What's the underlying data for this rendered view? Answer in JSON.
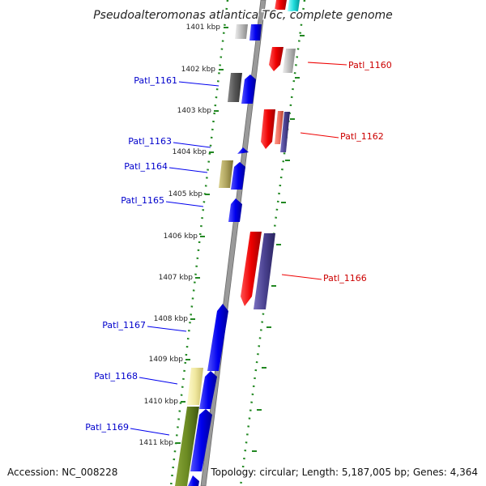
{
  "title": "Pseudoalteromonas atlantica T6c, complete genome",
  "accession": "Accession: NC_008228",
  "topology": "Topology: circular; Length: 5,187,005 bp; Genes: 4,364",
  "colors": {
    "forward": "#0000ee",
    "reverse": "#ee0000",
    "tick": "#228822",
    "backbone": "#999999"
  },
  "kbp_labels": [
    "1401 kbp",
    "1402 kbp",
    "1403 kbp",
    "1404 kbp",
    "1405 kbp",
    "1406 kbp",
    "1407 kbp",
    "1408 kbp",
    "1409 kbp",
    "1410 kbp",
    "1411 kbp"
  ],
  "gene_labels": [
    {
      "text": "Patl_1160",
      "strand": "reverse"
    },
    {
      "text": "Patl_1161",
      "strand": "forward"
    },
    {
      "text": "Patl_1162",
      "strand": "reverse"
    },
    {
      "text": "Patl_1163",
      "strand": "forward"
    },
    {
      "text": "Patl_1164",
      "strand": "forward"
    },
    {
      "text": "Patl_1165",
      "strand": "forward"
    },
    {
      "text": "Patl_1166",
      "strand": "reverse"
    },
    {
      "text": "Patl_1167",
      "strand": "forward"
    },
    {
      "text": "Patl_1168",
      "strand": "forward"
    },
    {
      "text": "Patl_1169",
      "strand": "forward"
    }
  ]
}
